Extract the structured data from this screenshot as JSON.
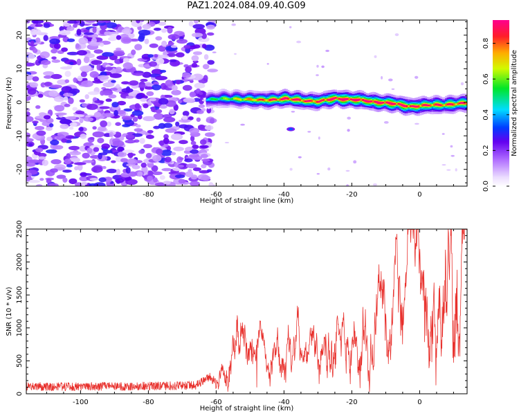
{
  "title": "PAZ1.2024.084.09.40.G09",
  "colors": {
    "accent_line": "#e8302c",
    "axis": "#000000"
  },
  "chart_data": [
    {
      "type": "heatmap",
      "xlabel": "Height of straight line (km)",
      "ylabel": "Frequency (Hz)",
      "xlim": [
        -116,
        14
      ],
      "ylim": [
        -25,
        24.5
      ],
      "xticks": [
        -100,
        -80,
        -60,
        -40,
        -20,
        0
      ],
      "yticks": [
        -20,
        -10,
        0,
        10,
        20
      ],
      "grid": false,
      "colorbar": {
        "label": "Normalized spectral amplitude",
        "range": [
          0.0,
          0.93
        ],
        "ticks": [
          0.0,
          0.2,
          0.4,
          0.6,
          0.8
        ],
        "colormap": "gist_rainbow (white at low end)"
      },
      "features": {
        "noise_region_x": [
          -116,
          -62
        ],
        "noise_amplitude_range": [
          0.05,
          0.3
        ],
        "signal_start_x": -63,
        "signal_path": [
          {
            "x": -63,
            "freq": 0.8,
            "peak": 0.45
          },
          {
            "x": -55,
            "freq": 1.1,
            "peak": 0.6
          },
          {
            "x": -48,
            "freq": 0.6,
            "peak": 0.75
          },
          {
            "x": -40,
            "freq": 1.0,
            "peak": 0.85
          },
          {
            "x": -30,
            "freq": 0.2,
            "peak": 0.8
          },
          {
            "x": -25,
            "freq": 1.2,
            "peak": 0.9
          },
          {
            "x": -18,
            "freq": 0.6,
            "peak": 0.9
          },
          {
            "x": -10,
            "freq": -0.2,
            "peak": 0.9
          },
          {
            "x": -3,
            "freq": -1.2,
            "peak": 0.85
          },
          {
            "x": 5,
            "freq": -0.8,
            "peak": 0.8
          },
          {
            "x": 14,
            "freq": -0.3,
            "peak": 0.8
          }
        ],
        "blob": {
          "x": -38,
          "freq": -8,
          "peak": 0.35
        }
      }
    },
    {
      "type": "line",
      "xlabel": "Height of straight line (km)",
      "ylabel": "SNR (10 * v/v)",
      "xlim": [
        -116,
        14
      ],
      "ylim": [
        0,
        2500
      ],
      "xticks": [
        -100,
        -80,
        -60,
        -40,
        -20,
        0
      ],
      "yticks": [
        0,
        500,
        1000,
        1500,
        2000,
        2500
      ],
      "grid": false,
      "series": [
        {
          "color": "#e8302c",
          "trend": [
            {
              "x": -116,
              "snr": 110
            },
            {
              "x": -100,
              "snr": 110
            },
            {
              "x": -80,
              "snr": 115
            },
            {
              "x": -66,
              "snr": 130
            },
            {
              "x": -60,
              "snr": 300
            },
            {
              "x": -55,
              "snr": 750
            },
            {
              "x": -50,
              "snr": 600
            },
            {
              "x": -45,
              "snr": 500
            },
            {
              "x": -40,
              "snr": 720
            },
            {
              "x": -35,
              "snr": 620
            },
            {
              "x": -30,
              "snr": 650
            },
            {
              "x": -25,
              "snr": 880
            },
            {
              "x": -20,
              "snr": 900
            },
            {
              "x": -15,
              "snr": 960
            },
            {
              "x": -10,
              "snr": 1200
            },
            {
              "x": -5,
              "snr": 1300
            },
            {
              "x": 0,
              "snr": 1450
            },
            {
              "x": 5,
              "snr": 1600
            },
            {
              "x": 10,
              "snr": 1800
            },
            {
              "x": 14,
              "snr": 2100
            }
          ],
          "notable_points": [
            {
              "x": -54,
              "snr": 1120
            },
            {
              "x": -12,
              "snr": 1960
            },
            {
              "x": 14,
              "snr": 2470
            },
            {
              "x": -15,
              "snr": 350
            },
            {
              "x": -48,
              "snr": 100
            }
          ]
        }
      ]
    }
  ]
}
